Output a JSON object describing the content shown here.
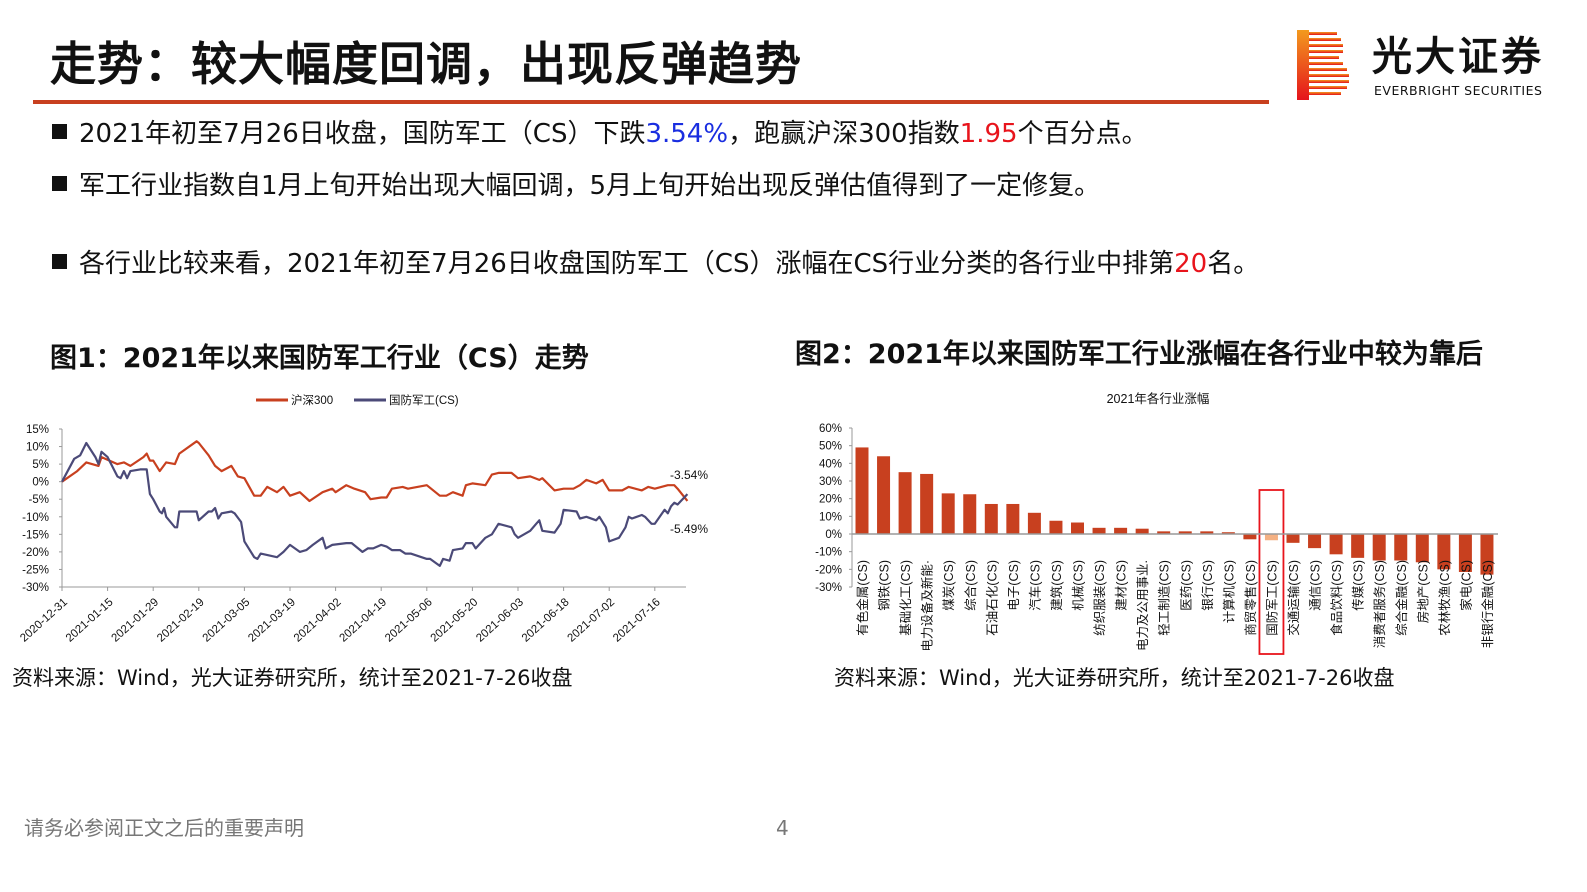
{
  "header": {
    "title": "走势：较大幅度回调，出现反弹趋势",
    "logo_text_cn": "光大证券",
    "logo_text_en": "EVERBRIGHT SECURITIES",
    "accent_color": "#c8401f"
  },
  "bullets": [
    {
      "parts": [
        "2021年初至7月26日收盘，国防军工（CS）下跌",
        "3.54%",
        "，跑赢沪深300指数",
        "1.95",
        "个百分点。"
      ]
    },
    {
      "parts": [
        "军工行业指数自1月上旬开始出现大幅回调，5月上旬开始出现反弹估值得到了一定修复。"
      ]
    },
    {
      "parts": [
        "各行业比较来看，2021年初至7月26日收盘国防军工（CS）涨幅在CS行业分类的各行业中排第",
        "20",
        "名。"
      ]
    }
  ],
  "figure1": {
    "title": "图1：2021年以来国防军工行业（CS）走势",
    "source": "资料来源：Wind，光大证券研究所，统计至2021-7-26收盘"
  },
  "figure2": {
    "title": "图2：2021年以来国防军工行业涨幅在各行业中较为靠后",
    "source": "资料来源：Wind，光大证券研究所，统计至2021-7-26收盘"
  },
  "footer": {
    "note": "请务必参阅正文之后的重要声明",
    "page": "4"
  },
  "chart_data": [
    {
      "type": "line",
      "title": "",
      "ylim": [
        -30,
        15
      ],
      "yticks": [
        "15%",
        "10%",
        "5%",
        "0%",
        "-5%",
        "-10%",
        "-15%",
        "-20%",
        "-25%",
        "-30%"
      ],
      "ytick_values": [
        15,
        10,
        5,
        0,
        -5,
        -10,
        -15,
        -20,
        -25,
        -30
      ],
      "xticks": [
        "2020-12-31",
        "2021-01-15",
        "2021-01-29",
        "2021-02-19",
        "2021-03-05",
        "2021-03-19",
        "2021-04-02",
        "2021-04-19",
        "2021-05-06",
        "2021-05-20",
        "2021-06-03",
        "2021-06-18",
        "2021-07-02",
        "2021-07-16"
      ],
      "legend_placement": "top",
      "grid": false,
      "annotations": [
        "-3.54%",
        "-5.49%"
      ],
      "series": [
        {
          "name": "沪深300",
          "color": "#c8401f",
          "points": [
            [
              "2020-12-31",
              0
            ],
            [
              "2021-01-05",
              3
            ],
            [
              "2021-01-08",
              5.5
            ],
            [
              "2021-01-12",
              4.5
            ],
            [
              "2021-01-13",
              7
            ],
            [
              "2021-01-18",
              5
            ],
            [
              "2021-01-20",
              5.5
            ],
            [
              "2021-01-22",
              4.5
            ],
            [
              "2021-01-26",
              7
            ],
            [
              "2021-01-27",
              8
            ],
            [
              "2021-01-28",
              6
            ],
            [
              "2021-01-29",
              6
            ],
            [
              "2021-02-01",
              3
            ],
            [
              "2021-02-04",
              5.5
            ],
            [
              "2021-02-08",
              5
            ],
            [
              "2021-02-10",
              8
            ],
            [
              "2021-02-18",
              11.5
            ],
            [
              "2021-02-19",
              11
            ],
            [
              "2021-02-22",
              7.5
            ],
            [
              "2021-02-24",
              4.5
            ],
            [
              "2021-02-26",
              3
            ],
            [
              "2021-03-01",
              4.5
            ],
            [
              "2021-03-03",
              1.5
            ],
            [
              "2021-03-05",
              1
            ],
            [
              "2021-03-08",
              -4
            ],
            [
              "2021-03-10",
              -4
            ],
            [
              "2021-03-12",
              -1.5
            ],
            [
              "2021-03-15",
              -3
            ],
            [
              "2021-03-17",
              -1.5
            ],
            [
              "2021-03-19",
              -4
            ],
            [
              "2021-03-22",
              -3
            ],
            [
              "2021-03-25",
              -5.5
            ],
            [
              "2021-03-29",
              -3
            ],
            [
              "2021-04-01",
              -2
            ],
            [
              "2021-04-02",
              -3
            ],
            [
              "2021-04-06",
              -1
            ],
            [
              "2021-04-09",
              -2
            ],
            [
              "2021-04-13",
              -3
            ],
            [
              "2021-04-15",
              -5
            ],
            [
              "2021-04-19",
              -4.5
            ],
            [
              "2021-04-21",
              -4.5
            ],
            [
              "2021-04-23",
              -2
            ],
            [
              "2021-04-27",
              -1.5
            ],
            [
              "2021-04-29",
              -2
            ],
            [
              "2021-05-06",
              -1
            ],
            [
              "2021-05-10",
              -4
            ],
            [
              "2021-05-12",
              -4
            ],
            [
              "2021-05-14",
              -3
            ],
            [
              "2021-05-17",
              -4
            ],
            [
              "2021-05-18",
              -1
            ],
            [
              "2021-05-20",
              -0.5
            ],
            [
              "2021-05-24",
              -1
            ],
            [
              "2021-05-26",
              2
            ],
            [
              "2021-05-28",
              2.5
            ],
            [
              "2021-06-01",
              2.5
            ],
            [
              "2021-06-03",
              1
            ],
            [
              "2021-06-07",
              1.5
            ],
            [
              "2021-06-10",
              0.5
            ],
            [
              "2021-06-11",
              1
            ],
            [
              "2021-06-15",
              -2.5
            ],
            [
              "2021-06-18",
              -2
            ],
            [
              "2021-06-21",
              -2
            ],
            [
              "2021-06-23",
              -1
            ],
            [
              "2021-06-25",
              0.5
            ],
            [
              "2021-06-28",
              -0.5
            ],
            [
              "2021-06-30",
              0.5
            ],
            [
              "2021-07-02",
              -2.5
            ],
            [
              "2021-07-06",
              -2.5
            ],
            [
              "2021-07-08",
              -1.5
            ],
            [
              "2021-07-12",
              -2.5
            ],
            [
              "2021-07-14",
              -1.5
            ],
            [
              "2021-07-16",
              -2
            ],
            [
              "2021-07-20",
              -1
            ],
            [
              "2021-07-22",
              -1
            ],
            [
              "2021-07-23",
              -2
            ],
            [
              "2021-07-26",
              -5.49
            ]
          ]
        },
        {
          "name": "国防军工(CS)",
          "color": "#4b4a78",
          "points": [
            [
              "2020-12-31",
              0
            ],
            [
              "2021-01-04",
              6.5
            ],
            [
              "2021-01-06",
              7.5
            ],
            [
              "2021-01-08",
              11
            ],
            [
              "2021-01-11",
              7
            ],
            [
              "2021-01-12",
              5
            ],
            [
              "2021-01-13",
              8.5
            ],
            [
              "2021-01-15",
              7
            ],
            [
              "2021-01-18",
              1.5
            ],
            [
              "2021-01-19",
              1
            ],
            [
              "2021-01-20",
              3
            ],
            [
              "2021-01-21",
              1
            ],
            [
              "2021-01-22",
              3
            ],
            [
              "2021-01-25",
              3.5
            ],
            [
              "2021-01-27",
              3.5
            ],
            [
              "2021-01-28",
              -3.5
            ],
            [
              "2021-01-29",
              -5
            ],
            [
              "2021-02-01",
              -8.5
            ],
            [
              "2021-02-02",
              -9
            ],
            [
              "2021-02-03",
              -7.5
            ],
            [
              "2021-02-04",
              -10
            ],
            [
              "2021-02-08",
              -13
            ],
            [
              "2021-02-09",
              -13
            ],
            [
              "2021-02-10",
              -8.5
            ],
            [
              "2021-02-18",
              -8.5
            ],
            [
              "2021-02-19",
              -11
            ],
            [
              "2021-02-22",
              -8.5
            ],
            [
              "2021-02-23",
              -8.5
            ],
            [
              "2021-02-24",
              -7.5
            ],
            [
              "2021-02-25",
              -10.5
            ],
            [
              "2021-02-26",
              -9
            ],
            [
              "2021-03-01",
              -8.5
            ],
            [
              "2021-03-02",
              -9
            ],
            [
              "2021-03-04",
              -11.5
            ],
            [
              "2021-03-05",
              -17
            ],
            [
              "2021-03-08",
              -21.5
            ],
            [
              "2021-03-09",
              -22
            ],
            [
              "2021-03-10",
              -20.5
            ],
            [
              "2021-03-15",
              -21.5
            ],
            [
              "2021-03-17",
              -20
            ],
            [
              "2021-03-19",
              -18
            ],
            [
              "2021-03-22",
              -20
            ],
            [
              "2021-03-24",
              -19.5
            ],
            [
              "2021-03-26",
              -18
            ],
            [
              "2021-03-29",
              -16
            ],
            [
              "2021-03-30",
              -19
            ],
            [
              "2021-04-01",
              -18
            ],
            [
              "2021-04-06",
              -17.5
            ],
            [
              "2021-04-08",
              -17.5
            ],
            [
              "2021-04-12",
              -20
            ],
            [
              "2021-04-14",
              -19
            ],
            [
              "2021-04-16",
              -19
            ],
            [
              "2021-04-19",
              -18
            ],
            [
              "2021-04-21",
              -18.5
            ],
            [
              "2021-04-23",
              -19.5
            ],
            [
              "2021-04-26",
              -19.5
            ],
            [
              "2021-04-28",
              -20.5
            ],
            [
              "2021-04-30",
              -20.5
            ],
            [
              "2021-05-06",
              -22
            ],
            [
              "2021-05-07",
              -22
            ],
            [
              "2021-05-10",
              -24
            ],
            [
              "2021-05-11",
              -22
            ],
            [
              "2021-05-13",
              -22.5
            ],
            [
              "2021-05-14",
              -19.5
            ],
            [
              "2021-05-17",
              -19
            ],
            [
              "2021-05-18",
              -17.5
            ],
            [
              "2021-05-20",
              -17.5
            ],
            [
              "2021-05-21",
              -19
            ],
            [
              "2021-05-24",
              -16
            ],
            [
              "2021-05-26",
              -15
            ],
            [
              "2021-05-28",
              -12
            ],
            [
              "2021-06-01",
              -13
            ],
            [
              "2021-06-02",
              -15
            ],
            [
              "2021-06-03",
              -16
            ],
            [
              "2021-06-07",
              -14
            ],
            [
              "2021-06-09",
              -12
            ],
            [
              "2021-06-10",
              -11
            ],
            [
              "2021-06-11",
              -14
            ],
            [
              "2021-06-15",
              -14.5
            ],
            [
              "2021-06-17",
              -12
            ],
            [
              "2021-06-18",
              -8
            ],
            [
              "2021-06-22",
              -8.5
            ],
            [
              "2021-06-23",
              -10.5
            ],
            [
              "2021-06-25",
              -10
            ],
            [
              "2021-06-28",
              -11
            ],
            [
              "2021-06-29",
              -10
            ],
            [
              "2021-07-01",
              -13
            ],
            [
              "2021-07-02",
              -17
            ],
            [
              "2021-07-05",
              -16
            ],
            [
              "2021-07-07",
              -13
            ],
            [
              "2021-07-08",
              -10
            ],
            [
              "2021-07-09",
              -10.5
            ],
            [
              "2021-07-12",
              -9.5
            ],
            [
              "2021-07-13",
              -10
            ],
            [
              "2021-07-15",
              -12
            ],
            [
              "2021-07-16",
              -12
            ],
            [
              "2021-07-19",
              -8
            ],
            [
              "2021-07-20",
              -9
            ],
            [
              "2021-07-21",
              -7
            ],
            [
              "2021-07-22",
              -6
            ],
            [
              "2021-07-23",
              -6.5
            ],
            [
              "2021-07-26",
              -3.54
            ]
          ]
        }
      ]
    },
    {
      "type": "bar",
      "title": "2021年各行业涨幅",
      "ylim": [
        -30,
        60
      ],
      "yticks": [
        "60%",
        "50%",
        "40%",
        "30%",
        "20%",
        "10%",
        "0%",
        "-10%",
        "-20%",
        "-30%"
      ],
      "ytick_values": [
        60,
        50,
        40,
        30,
        20,
        10,
        0,
        -10,
        -20,
        -30
      ],
      "bar_color": "#c8401f",
      "highlight_color": "#f4b183",
      "highlight_box_color": "#e8141c",
      "highlight_category": "国防军工(CS)",
      "categories": [
        "有色金属(CS)",
        "钢铁(CS)",
        "基础化工(CS)",
        "电力设备及新能·",
        "煤炭(CS)",
        "综合(CS)",
        "石油石化(CS)",
        "电子(CS)",
        "汽车(CS)",
        "建筑(CS)",
        "机械(CS)",
        "纺织服装(CS)",
        "建材(CS)",
        "电力及公用事业.",
        "轻工制造(CS)",
        "医药(CS)",
        "银行(CS)",
        "计算机(CS)",
        "商贸零售(CS)",
        "国防军工(CS)",
        "交通运输(CS)",
        "通信(CS)",
        "食品饮料(CS)",
        "传媒(CS)",
        "消费者服务(CS)",
        "综合金融(CS)",
        "房地产(CS)",
        "农林牧渔(CS)",
        "家电(CS)",
        "非银行金融(CS)"
      ],
      "values": [
        49,
        44,
        35,
        34,
        23,
        22.5,
        17,
        17,
        12,
        7.5,
        6.5,
        3.5,
        3.5,
        3,
        1.5,
        1.5,
        1.5,
        1,
        -3,
        -3.54,
        -5,
        -8,
        -11.5,
        -13.5,
        -15,
        -15,
        -16,
        -20,
        -21.5,
        -23
      ]
    }
  ]
}
